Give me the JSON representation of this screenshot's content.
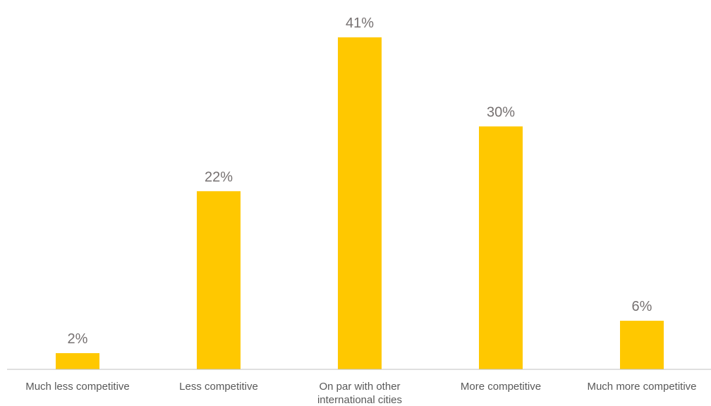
{
  "chart_data": {
    "type": "bar",
    "categories": [
      [
        "Much less competitive"
      ],
      [
        "Less competitive"
      ],
      [
        "On par with other",
        "international cities"
      ],
      [
        "More competitive"
      ],
      [
        "Much more competitive"
      ]
    ],
    "values": [
      2,
      22,
      41,
      30,
      6
    ],
    "data_labels": [
      "2%",
      "22%",
      "41%",
      "30%",
      "6%"
    ],
    "value_unit": "%",
    "ylim": [
      0,
      41
    ],
    "grid": false,
    "legend": "none",
    "bar_color": "#FFC800",
    "axis_color": "#BFBFBF",
    "label_color": "#767171",
    "category_color": "#595959"
  }
}
